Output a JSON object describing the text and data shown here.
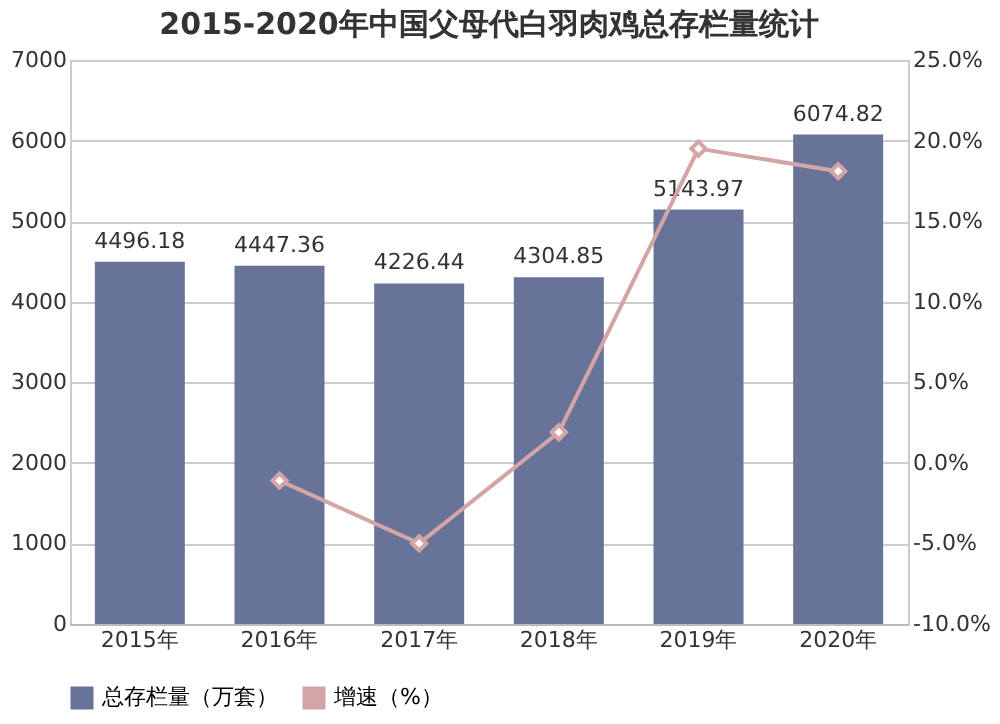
{
  "chart_data": {
    "type": "bar",
    "title": "2015-2020年中国父母代白羽肉鸡总存栏量统计",
    "categories": [
      "2015年",
      "2016年",
      "2017年",
      "2018年",
      "2019年",
      "2020年"
    ],
    "series": [
      {
        "name": "总存栏量（万套）",
        "color": "#68739a",
        "values": [
          4496.18,
          4447.36,
          4226.44,
          4304.85,
          5143.97,
          6074.82
        ],
        "value_labels": [
          "4496.18",
          "4447.36",
          "4226.44",
          "4304.85",
          "5143.97",
          "6074.82"
        ]
      },
      {
        "name": "增速（%）",
        "type": "line",
        "axis": "y2",
        "color": "#d4a5a5",
        "marker": "diamond",
        "values": [
          null,
          -1.1,
          -5.0,
          1.9,
          19.5,
          18.1
        ]
      }
    ],
    "ylim": [
      0,
      7000
    ],
    "yticks": [
      0,
      1000,
      2000,
      3000,
      4000,
      5000,
      6000,
      7000
    ],
    "y2lim": [
      -10,
      25
    ],
    "y2ticks": [
      {
        "value": -10,
        "label": "-10.0%"
      },
      {
        "value": -5,
        "label": "-5.0%"
      },
      {
        "value": 0,
        "label": "0.0%"
      },
      {
        "value": 5,
        "label": "5.0%"
      },
      {
        "value": 10,
        "label": "10.0%"
      },
      {
        "value": 15,
        "label": "15.0%"
      },
      {
        "value": 20,
        "label": "20.0%"
      },
      {
        "value": 25,
        "label": "25.0%"
      }
    ],
    "grid": "y",
    "legend": "bottom"
  }
}
